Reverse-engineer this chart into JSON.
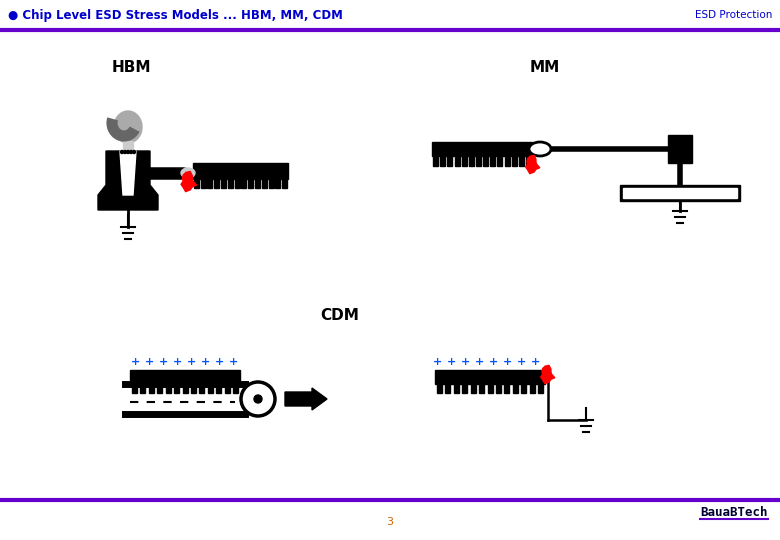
{
  "title_left": "● Chip Level ESD Stress Models ... HBM, MM, CDM",
  "title_right": "ESD Protection",
  "title_color": "#0000CC",
  "title_bar_color": "#6600CC",
  "logo_text": "BauaBTech",
  "page_num": "3",
  "page_num_color": "#CC6600",
  "section_hbm": "HBM",
  "section_mm": "MM",
  "section_cdm": "CDM",
  "bg_color": "#FFFFFF"
}
